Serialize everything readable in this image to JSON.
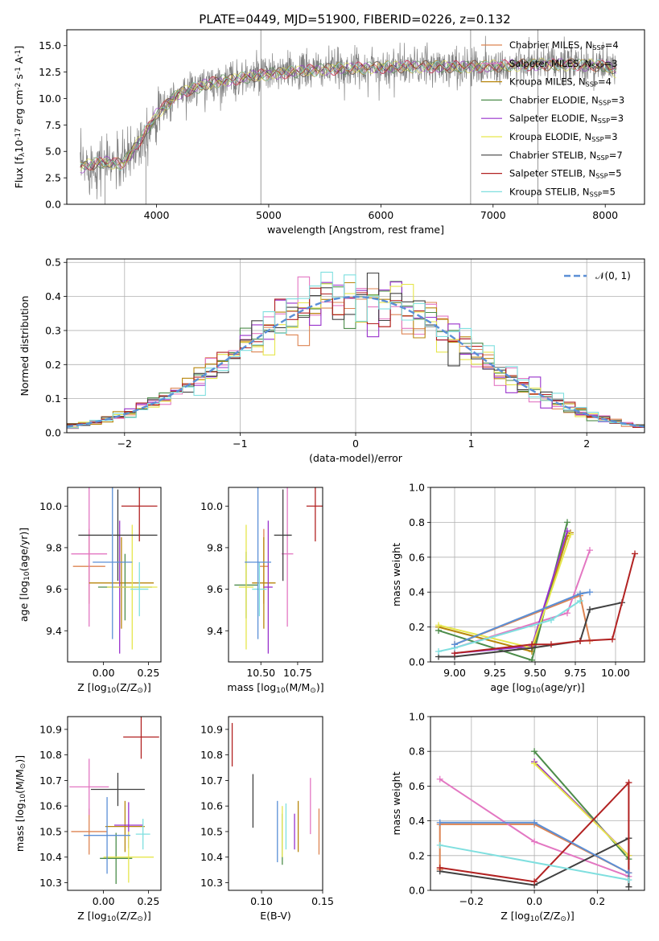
{
  "colors": {
    "chabrier_miles": "#dd8452",
    "salpeter_miles": "#e377c2",
    "kroupa_miles": "#b8860b",
    "chabrier_elodie": "#4c8c4a",
    "salpeter_elodie": "#9932cc",
    "kroupa_elodie": "#e6e64c",
    "chabrier_stelib": "#404040",
    "salpeter_stelib": "#b22222",
    "kroupa_stelib": "#7fdfdf",
    "normal_curve": "#5b8fd6"
  },
  "chart_data": [
    {
      "id": "spectrum",
      "type": "line",
      "title": "PLATE=0449, MJD=51900, FIBERID=0226, z=0.132",
      "xlabel": "wavelength [Angstrom, rest frame]",
      "ylabel": "Flux [f$_\\lambda$10$^{-17}$ erg cm$^{-2}$ s$^{-1}$ A$^{-1}$]",
      "xlim": [
        3200,
        8350
      ],
      "ylim": [
        0,
        16.5
      ],
      "xticks": [
        4000,
        5000,
        6000,
        7000,
        8000
      ],
      "yticks": [
        0.0,
        2.5,
        5.0,
        7.5,
        10.0,
        12.5,
        15.0
      ],
      "legend_position": "top-right",
      "legend": [
        "Chabrier MILES, N$_{SSP}$=4",
        "Salpeter MILES, N$_{SSP}$=3",
        "Kroupa MILES, N$_{SSP}$=4",
        "Chabrier ELODIE, N$_{SSP}$=3",
        "Salpeter ELODIE, N$_{SSP}$=3",
        "Kroupa ELODIE, N$_{SSP}$=3",
        "Chabrier STELIB, N$_{SSP}$=7",
        "Salpeter STELIB, N$_{SSP}$=5",
        "Kroupa STELIB, N$_{SSP}$=5"
      ],
      "legend_labels": [
        {
          "name": "Chabrier MILES, N",
          "sub": "SSP",
          "n": "=4"
        },
        {
          "name": "Salpeter MILES, N",
          "sub": "SSP",
          "n": "=3"
        },
        {
          "name": "Kroupa MILES, N",
          "sub": "SSP",
          "n": "=4"
        },
        {
          "name": "Chabrier ELODIE, N",
          "sub": "SSP",
          "n": "=3"
        },
        {
          "name": "Salpeter ELODIE, N",
          "sub": "SSP",
          "n": "=3"
        },
        {
          "name": "Kroupa ELODIE, N",
          "sub": "SSP",
          "n": "=3"
        },
        {
          "name": "Chabrier STELIB, N",
          "sub": "SSP",
          "n": "=7"
        },
        {
          "name": "Salpeter STELIB, N",
          "sub": "SSP",
          "n": "=5"
        },
        {
          "name": "Kroupa STELIB, N",
          "sub": "SSP",
          "n": "=5"
        }
      ],
      "continuum": {
        "x": [
          3320,
          3500,
          3700,
          3850,
          4000,
          4200,
          4500,
          4800,
          5000,
          5300,
          5600,
          5900,
          6200,
          6500,
          6800,
          7100,
          7400,
          7700,
          8000,
          8100
        ],
        "y": [
          3.5,
          4.0,
          3.8,
          6.0,
          8.5,
          10.5,
          11.5,
          12.0,
          12.3,
          12.6,
          12.8,
          12.9,
          13.0,
          13.0,
          13.0,
          13.1,
          13.2,
          13.2,
          13.1,
          12.5
        ]
      }
    },
    {
      "id": "residual_hist",
      "type": "histogram",
      "xlabel": "(data-model)/error",
      "ylabel": "Normed distribution",
      "xlim": [
        -2.5,
        2.5
      ],
      "ylim": [
        0,
        0.51
      ],
      "xticks": [
        -2,
        -1,
        0,
        1,
        2
      ],
      "yticks": [
        0.0,
        0.1,
        0.2,
        0.3,
        0.4,
        0.5
      ],
      "bin_width": 0.1,
      "legend_position": "top-right",
      "legend": [
        "$\\mathcal{N}(0,1)$"
      ],
      "legend_text": "𝒩(0, 1)",
      "grid": true
    },
    {
      "id": "age_vs_Z",
      "type": "scatter",
      "xlabel": "Z [log$_{10}$(Z/Z$_\\odot$)]",
      "ylabel": "age  [log$_{10}$(age/yr)]",
      "xlim": [
        -0.2,
        0.32
      ],
      "ylim": [
        9.25,
        10.09
      ],
      "xticks": [
        0.0,
        0.25
      ],
      "yticks": [
        9.4,
        9.6,
        9.8,
        10.0
      ],
      "points": [
        {
          "model": "chabrier_miles",
          "x": -0.08,
          "xerr": 0.09,
          "y": 9.71,
          "yerr": 0.18
        },
        {
          "model": "salpeter_miles",
          "x": -0.08,
          "xerr": 0.1,
          "y": 9.77,
          "yerr": 0.35
        },
        {
          "model": "kroupa_miles",
          "x": 0.1,
          "xerr": 0.18,
          "y": 9.63,
          "yerr": 0.22
        },
        {
          "model": "chabrier_elodie",
          "x": 0.12,
          "xerr": 0.15,
          "y": 9.61,
          "yerr": 0.16
        },
        {
          "model": "salpeter_elodie",
          "x": 0.09,
          "xerr": 0.04,
          "y": 9.61,
          "yerr": 0.32
        },
        {
          "model": "kroupa_elodie",
          "x": 0.16,
          "xerr": 0.14,
          "y": 9.61,
          "yerr": 0.3
        },
        {
          "model": "chabrier_stelib",
          "x": 0.08,
          "xerr": 0.22,
          "y": 9.86,
          "yerr": 0.22
        },
        {
          "model": "salpeter_stelib",
          "x": 0.2,
          "xerr": 0.1,
          "y": 10.0,
          "yerr": 0.17
        },
        {
          "model": "kroupa_stelib",
          "x": 0.2,
          "xerr": 0.05,
          "y": 9.6,
          "yerr": 0.13
        },
        {
          "model": "normal_curve",
          "x": 0.05,
          "xerr": 0.11,
          "y": 9.73,
          "yerr": 0.37
        }
      ]
    },
    {
      "id": "age_vs_mass",
      "type": "scatter",
      "xlabel": "mass [log$_{10}$(M/M$_\\odot$)]",
      "ylabel": "",
      "xlim": [
        10.28,
        10.92
      ],
      "ylim": [
        9.25,
        10.09
      ],
      "xticks": [
        10.5,
        10.75
      ],
      "yticks": [
        9.4,
        9.6,
        9.8,
        10.0
      ],
      "points": [
        {
          "model": "chabrier_miles",
          "x": 10.52,
          "xerr": 0.03,
          "y": 9.71,
          "yerr": 0.18
        },
        {
          "model": "salpeter_miles",
          "x": 10.68,
          "xerr": 0.04,
          "y": 9.77,
          "yerr": 0.35
        },
        {
          "model": "kroupa_miles",
          "x": 10.52,
          "xerr": 0.08,
          "y": 9.63,
          "yerr": 0.22
        },
        {
          "model": "chabrier_elodie",
          "x": 10.4,
          "xerr": 0.08,
          "y": 9.62,
          "yerr": 0.16
        },
        {
          "model": "salpeter_elodie",
          "x": 10.55,
          "xerr": 0.03,
          "y": 9.61,
          "yerr": 0.32
        },
        {
          "model": "kroupa_elodie",
          "x": 10.4,
          "xerr": 0.05,
          "y": 9.61,
          "yerr": 0.3
        },
        {
          "model": "chabrier_stelib",
          "x": 10.65,
          "xerr": 0.06,
          "y": 9.86,
          "yerr": 0.22
        },
        {
          "model": "salpeter_stelib",
          "x": 10.87,
          "xerr": 0.06,
          "y": 10.0,
          "yerr": 0.17
        },
        {
          "model": "kroupa_stelib",
          "x": 10.49,
          "xerr": 0.05,
          "y": 9.6,
          "yerr": 0.13
        },
        {
          "model": "normal_curve",
          "x": 10.48,
          "xerr": 0.09,
          "y": 9.73,
          "yerr": 0.37
        }
      ]
    },
    {
      "id": "weight_vs_age",
      "type": "line",
      "xlabel": "age  [log$_{10}$(age/yr)]",
      "ylabel": "mass weight",
      "xlim": [
        8.85,
        10.18
      ],
      "ylim": [
        0,
        1.0
      ],
      "xticks": [
        9.0,
        9.25,
        9.5,
        9.75,
        10.0
      ],
      "yticks": [
        0.0,
        0.2,
        0.4,
        0.6,
        0.8,
        1.0
      ],
      "grid": true,
      "series": [
        {
          "model": "chabrier_miles",
          "x": [
            9.0,
            9.78,
            9.84
          ],
          "y": [
            0.1,
            0.38,
            0.12
          ]
        },
        {
          "model": "salpeter_miles",
          "x": [
            9.0,
            9.7,
            9.84
          ],
          "y": [
            0.08,
            0.28,
            0.64
          ]
        },
        {
          "model": "kroupa_miles",
          "x": [
            8.9,
            9.48,
            9.7,
            9.72
          ],
          "y": [
            0.2,
            0.06,
            0.72,
            0.74
          ]
        },
        {
          "model": "chabrier_elodie",
          "x": [
            8.9,
            9.48,
            9.7
          ],
          "y": [
            0.18,
            0.01,
            0.8
          ]
        },
        {
          "model": "salpeter_elodie",
          "x": [
            9.0,
            9.48,
            9.7
          ],
          "y": [
            0.05,
            0.09,
            0.75
          ]
        },
        {
          "model": "kroupa_elodie",
          "x": [
            8.9,
            9.48,
            9.72
          ],
          "y": [
            0.21,
            0.08,
            0.73
          ]
        },
        {
          "model": "chabrier_stelib",
          "x": [
            8.9,
            9.0,
            9.48,
            9.78,
            9.84,
            10.04
          ],
          "y": [
            0.03,
            0.03,
            0.08,
            0.12,
            0.3,
            0.34
          ]
        },
        {
          "model": "salpeter_stelib",
          "x": [
            9.0,
            9.48,
            9.6,
            9.78,
            9.98,
            10.12
          ],
          "y": [
            0.05,
            0.1,
            0.1,
            0.12,
            0.13,
            0.62
          ]
        },
        {
          "model": "kroupa_stelib",
          "x": [
            8.9,
            9.0,
            9.6,
            9.78
          ],
          "y": [
            0.06,
            0.08,
            0.24,
            0.35
          ]
        },
        {
          "model": "normal_curve",
          "x": [
            9.0,
            9.78,
            9.84
          ],
          "y": [
            0.1,
            0.39,
            0.4
          ]
        }
      ]
    },
    {
      "id": "mass_vs_Z",
      "type": "scatter",
      "xlabel": "Z [log$_{10}$(Z/Z$_\\odot$)]",
      "ylabel": "mass [log$_{10}$(M/M$_\\odot$)]",
      "xlim": [
        -0.2,
        0.32
      ],
      "ylim": [
        10.27,
        10.95
      ],
      "xticks": [
        0.0,
        0.25
      ],
      "yticks": [
        10.3,
        10.4,
        10.5,
        10.6,
        10.7,
        10.8,
        10.9
      ],
      "points": [
        {
          "model": "chabrier_miles",
          "x": -0.08,
          "xerr": 0.1,
          "y": 10.5,
          "yerr": 0.09
        },
        {
          "model": "salpeter_miles",
          "x": -0.08,
          "xerr": 0.11,
          "y": 10.675,
          "yerr": 0.11
        },
        {
          "model": "kroupa_miles",
          "x": 0.12,
          "xerr": 0.11,
          "y": 10.52,
          "yerr": 0.1
        },
        {
          "model": "chabrier_elodie",
          "x": 0.07,
          "xerr": 0.09,
          "y": 10.395,
          "yerr": 0.1
        },
        {
          "model": "salpeter_elodie",
          "x": 0.14,
          "xerr": 0.08,
          "y": 10.525,
          "yerr": 0.09
        },
        {
          "model": "kroupa_elodie",
          "x": 0.14,
          "xerr": 0.14,
          "y": 10.4,
          "yerr": 0.1
        },
        {
          "model": "chabrier_stelib",
          "x": 0.08,
          "xerr": 0.15,
          "y": 10.665,
          "yerr": 0.065
        },
        {
          "model": "salpeter_stelib",
          "x": 0.21,
          "xerr": 0.1,
          "y": 10.87,
          "yerr": 0.085
        },
        {
          "model": "kroupa_stelib",
          "x": 0.22,
          "xerr": 0.04,
          "y": 10.49,
          "yerr": 0.06
        },
        {
          "model": "normal_curve",
          "x": 0.02,
          "xerr": 0.13,
          "y": 10.485,
          "yerr": 0.15
        }
      ]
    },
    {
      "id": "mass_vs_ebv",
      "type": "scatter",
      "xlabel": "E(B-V)",
      "ylabel": "",
      "xlim": [
        0.073,
        0.15
      ],
      "ylim": [
        10.27,
        10.95
      ],
      "xticks": [
        0.1,
        0.15
      ],
      "yticks": [
        10.3,
        10.4,
        10.5,
        10.6,
        10.7,
        10.8,
        10.9
      ],
      "points": [
        {
          "model": "chabrier_miles",
          "x": 0.147,
          "y": 10.5,
          "yerr": 0.09
        },
        {
          "model": "salpeter_miles",
          "x": 0.14,
          "y": 10.6,
          "yerr": 0.11
        },
        {
          "model": "kroupa_miles",
          "x": 0.13,
          "y": 10.52,
          "yerr": 0.1
        },
        {
          "model": "chabrier_elodie",
          "x": 0.117,
          "y": 10.47,
          "yerr": 0.1
        },
        {
          "model": "salpeter_elodie",
          "x": 0.127,
          "y": 10.5,
          "yerr": 0.07
        },
        {
          "model": "kroupa_elodie",
          "x": 0.117,
          "y": 10.5,
          "yerr": 0.1
        },
        {
          "model": "chabrier_stelib",
          "x": 0.093,
          "y": 10.62,
          "yerr": 0.105
        },
        {
          "model": "salpeter_stelib",
          "x": 0.076,
          "y": 10.84,
          "yerr": 0.085
        },
        {
          "model": "kroupa_stelib",
          "x": 0.12,
          "y": 10.52,
          "yerr": 0.09
        },
        {
          "model": "normal_curve",
          "x": 0.113,
          "y": 10.5,
          "yerr": 0.12
        }
      ]
    },
    {
      "id": "weight_vs_Z",
      "type": "line",
      "xlabel": "Z [log$_{10}$(Z/Z$_\\odot$)]",
      "ylabel": "mass weight",
      "xlim": [
        -0.33,
        0.35
      ],
      "ylim": [
        0,
        1.0
      ],
      "xticks": [
        -0.2,
        0.0,
        0.2
      ],
      "yticks": [
        0.0,
        0.2,
        0.4,
        0.6,
        0.8,
        1.0
      ],
      "grid": true,
      "series": [
        {
          "model": "chabrier_miles",
          "x": [
            -0.3,
            -0.3,
            0.0,
            0.3
          ],
          "y": [
            0.12,
            0.38,
            0.38,
            0.1
          ]
        },
        {
          "model": "salpeter_miles",
          "x": [
            -0.3,
            0.0,
            0.3
          ],
          "y": [
            0.64,
            0.28,
            0.08
          ]
        },
        {
          "model": "kroupa_miles",
          "x": [
            0.0,
            0.3
          ],
          "y": [
            0.74,
            0.2
          ]
        },
        {
          "model": "chabrier_elodie",
          "x": [
            0.0,
            0.3
          ],
          "y": [
            0.8,
            0.18
          ]
        },
        {
          "model": "salpeter_elodie",
          "x": [
            0.0,
            0.3
          ],
          "y": [
            0.74,
            0.2
          ]
        },
        {
          "model": "kroupa_elodie",
          "x": [
            0.0,
            0.3
          ],
          "y": [
            0.73,
            0.2
          ]
        },
        {
          "model": "chabrier_stelib",
          "x": [
            -0.3,
            0.0,
            0.3,
            0.3
          ],
          "y": [
            0.11,
            0.03,
            0.3,
            0.02
          ]
        },
        {
          "model": "salpeter_stelib",
          "x": [
            -0.3,
            0.0,
            0.3,
            0.3
          ],
          "y": [
            0.13,
            0.05,
            0.62,
            0.1
          ]
        },
        {
          "model": "kroupa_stelib",
          "x": [
            -0.3,
            0.3
          ],
          "y": [
            0.26,
            0.06
          ]
        },
        {
          "model": "normal_curve",
          "x": [
            -0.3,
            0.0,
            0.3
          ],
          "y": [
            0.39,
            0.39,
            0.1
          ]
        }
      ]
    }
  ]
}
